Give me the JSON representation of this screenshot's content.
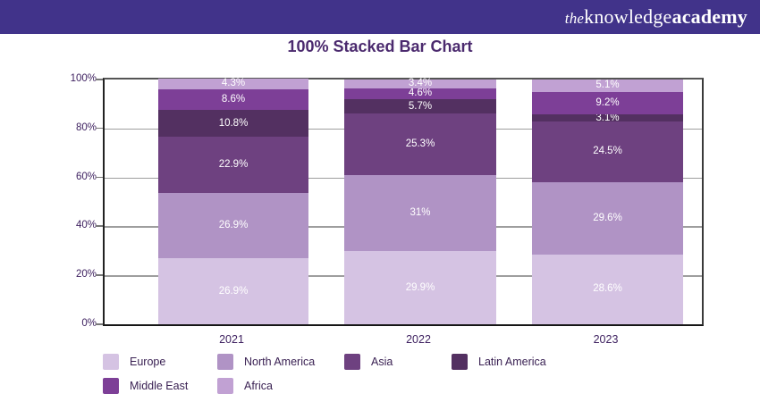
{
  "header": {
    "background": "#41338a",
    "logo": {
      "the": "the",
      "knowledge": "knowledge",
      "academy": "academy",
      "text_color": "#ffffff"
    }
  },
  "title": {
    "text": "100% Stacked Bar Chart",
    "color": "#4b2a6e"
  },
  "chart_data": {
    "type": "bar",
    "variant": "100-percent-stacked",
    "title": "100% Stacked Bar Chart",
    "categories": [
      "2021",
      "2022",
      "2023"
    ],
    "series": [
      {
        "name": "Europe",
        "color": "#d5c3e3",
        "values": [
          26.9,
          29.9,
          28.6
        ],
        "labels": [
          "26.9%",
          "29.9%",
          "28.6%"
        ]
      },
      {
        "name": "North America",
        "color": "#b093c5",
        "values": [
          26.9,
          31.0,
          29.6
        ],
        "labels": [
          "26.9%",
          "31%",
          "29.6%"
        ]
      },
      {
        "name": "Asia",
        "color": "#6e4180",
        "values": [
          22.9,
          25.3,
          24.5
        ],
        "labels": [
          "22.9%",
          "25.3%",
          "24.5%"
        ]
      },
      {
        "name": "Latin America",
        "color": "#533061",
        "values": [
          10.8,
          5.7,
          3.1
        ],
        "labels": [
          "10.8%",
          "5.7%",
          "3.1%"
        ]
      },
      {
        "name": "Middle East",
        "color": "#7d3f97",
        "values": [
          8.6,
          4.6,
          9.2
        ],
        "labels": [
          "8.6%",
          "4.6%",
          "9.2%"
        ]
      },
      {
        "name": "Africa",
        "color": "#c1a1d3",
        "values": [
          4.3,
          3.4,
          5.1
        ],
        "labels": [
          "4.3%",
          "3.4%",
          "5.1%"
        ]
      }
    ],
    "stack_order_bottom_to_top": [
      "Europe",
      "North America",
      "Asia",
      "Latin America",
      "Middle East",
      "Africa"
    ],
    "y_ticks": [
      {
        "label": "100%",
        "value": 100
      },
      {
        "label": "80%",
        "value": 80
      },
      {
        "label": "60%",
        "value": 60
      },
      {
        "label": "40%",
        "value": 40
      },
      {
        "label": "20%",
        "value": 20
      },
      {
        "label": "0%",
        "value": 0
      }
    ],
    "ylim": [
      0,
      100
    ],
    "grid": true,
    "gridline_color": "#9e9e9e",
    "tick_color": "#777777",
    "axis_text_color": "#3e2160",
    "value_label_color": "#ffffff",
    "legend_position": "bottom",
    "legend_rows": [
      [
        "Europe",
        "North America",
        "Asia",
        "Latin America"
      ],
      [
        "Middle East",
        "Africa"
      ]
    ],
    "legend_text_color": "#3a2153"
  }
}
